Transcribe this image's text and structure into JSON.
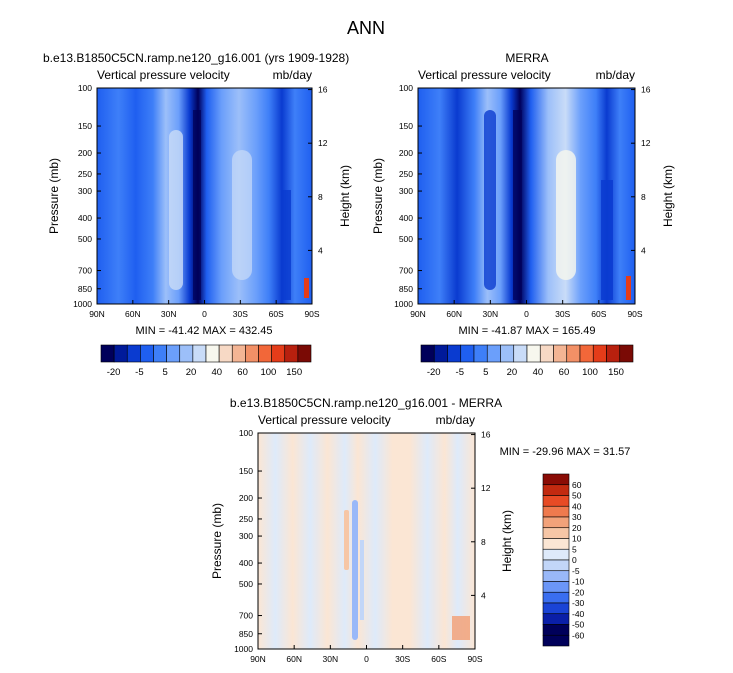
{
  "page_title": "ANN",
  "colors": {
    "blues": [
      "#00005a",
      "#001a9a",
      "#0a3bd0",
      "#1f5ff0",
      "#3e7ff8",
      "#6b9ffb",
      "#9cbff9",
      "#c9dcf8",
      "#f7f7ee"
    ],
    "reds": [
      "#f7d9c5",
      "#f4b594",
      "#f29066",
      "#f26739",
      "#e43c19",
      "#b8200e",
      "#7a0a05"
    ],
    "diff": [
      "#00005a",
      "#0a1fa8",
      "#1a44d6",
      "#3a6ef0",
      "#6b96f7",
      "#99b8f8",
      "#c2d6f8",
      "#deeafa",
      "#fbe6d4",
      "#f6c6a6",
      "#f2a27a",
      "#ef7a4e",
      "#e74b25",
      "#c22a10",
      "#8a0c05"
    ]
  },
  "chart_data": [
    {
      "type": "heatmap",
      "panel": "model",
      "title": "b.e13.B1850C5CN.ramp.ne120_g16.001 (yrs 1909-1928)",
      "left_label": "Vertical pressure velocity",
      "right_label": "mb/day",
      "ylabel": "Pressure (mb)",
      "ylabel_right": "Height (km)",
      "x_ticks": [
        "90N",
        "60N",
        "30N",
        "0",
        "30S",
        "60S",
        "90S"
      ],
      "x_range": [
        90,
        -90
      ],
      "y_ticks": [
        "100",
        "150",
        "200",
        "250",
        "300",
        "400",
        "500",
        "700",
        "850",
        "1000"
      ],
      "y_tick_values": [
        100,
        150,
        200,
        250,
        300,
        400,
        500,
        700,
        850,
        1000
      ],
      "y_range": [
        100,
        1000
      ],
      "height_ticks": [
        "16",
        "12",
        "8",
        "4"
      ],
      "height_tick_values": [
        16,
        12,
        8,
        4
      ],
      "stats": "MIN = -41.42   MAX = 432.45",
      "colorbar_labels": [
        "-20",
        "-5",
        "5",
        "20",
        "40",
        "60",
        "100",
        "150"
      ]
    },
    {
      "type": "heatmap",
      "panel": "obs",
      "title": "MERRA",
      "left_label": "Vertical pressure velocity",
      "right_label": "mb/day",
      "ylabel": "Pressure (mb)",
      "ylabel_right": "Height (km)",
      "x_ticks": [
        "90N",
        "60N",
        "30N",
        "0",
        "30S",
        "60S",
        "90S"
      ],
      "x_range": [
        90,
        -90
      ],
      "y_ticks": [
        "100",
        "150",
        "200",
        "250",
        "300",
        "400",
        "500",
        "700",
        "850",
        "1000"
      ],
      "y_tick_values": [
        100,
        150,
        200,
        250,
        300,
        400,
        500,
        700,
        850,
        1000
      ],
      "y_range": [
        100,
        1000
      ],
      "height_ticks": [
        "16",
        "12",
        "8",
        "4"
      ],
      "height_tick_values": [
        16,
        12,
        8,
        4
      ],
      "stats": "MIN = -41.87   MAX = 165.49",
      "colorbar_labels": [
        "-20",
        "-5",
        "5",
        "20",
        "40",
        "60",
        "100",
        "150"
      ]
    },
    {
      "type": "heatmap",
      "panel": "diff",
      "title": "b.e13.B1850C5CN.ramp.ne120_g16.001 - MERRA",
      "left_label": "Vertical pressure velocity",
      "right_label": "mb/day",
      "ylabel": "Pressure (mb)",
      "ylabel_right": "Height (km)",
      "x_ticks": [
        "90N",
        "60N",
        "30N",
        "0",
        "30S",
        "60S",
        "90S"
      ],
      "x_range": [
        90,
        -90
      ],
      "y_ticks": [
        "100",
        "150",
        "200",
        "250",
        "300",
        "400",
        "500",
        "700",
        "850",
        "1000"
      ],
      "y_tick_values": [
        100,
        150,
        200,
        250,
        300,
        400,
        500,
        700,
        850,
        1000
      ],
      "y_range": [
        100,
        1000
      ],
      "height_ticks": [
        "16",
        "12",
        "8",
        "4"
      ],
      "height_tick_values": [
        16,
        12,
        8,
        4
      ],
      "stats": "MIN = -29.96  MAX =  31.57",
      "colorbar_labels": [
        "60",
        "50",
        "40",
        "30",
        "20",
        "10",
        "5",
        "0",
        "-5",
        "-10",
        "-20",
        "-30",
        "-40",
        "-50",
        "-60"
      ]
    }
  ]
}
